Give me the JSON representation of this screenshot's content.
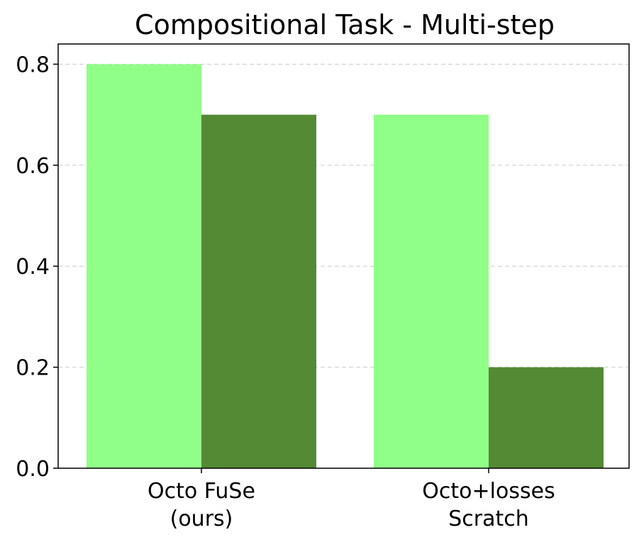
{
  "chart_data": {
    "type": "bar",
    "title": "Compositional Task - Multi-step",
    "xlabel": "",
    "ylabel": "",
    "categories": [
      [
        "Octo FuSe",
        "(ours)"
      ],
      [
        "Octo+losses",
        "Scratch"
      ]
    ],
    "series": [
      {
        "values": [
          0.8,
          0.7
        ],
        "color": "#90FF88"
      },
      {
        "values": [
          0.7,
          0.2
        ],
        "color": "#548A34"
      }
    ],
    "ylim": [
      0,
      0.84
    ],
    "yticks": [
      0.0,
      0.2,
      0.4,
      0.6,
      0.8
    ],
    "ytick_labels": [
      "0.0",
      "0.2",
      "0.4",
      "0.6",
      "0.8"
    ],
    "grid": "horizontal-dashed",
    "legend": "none"
  }
}
